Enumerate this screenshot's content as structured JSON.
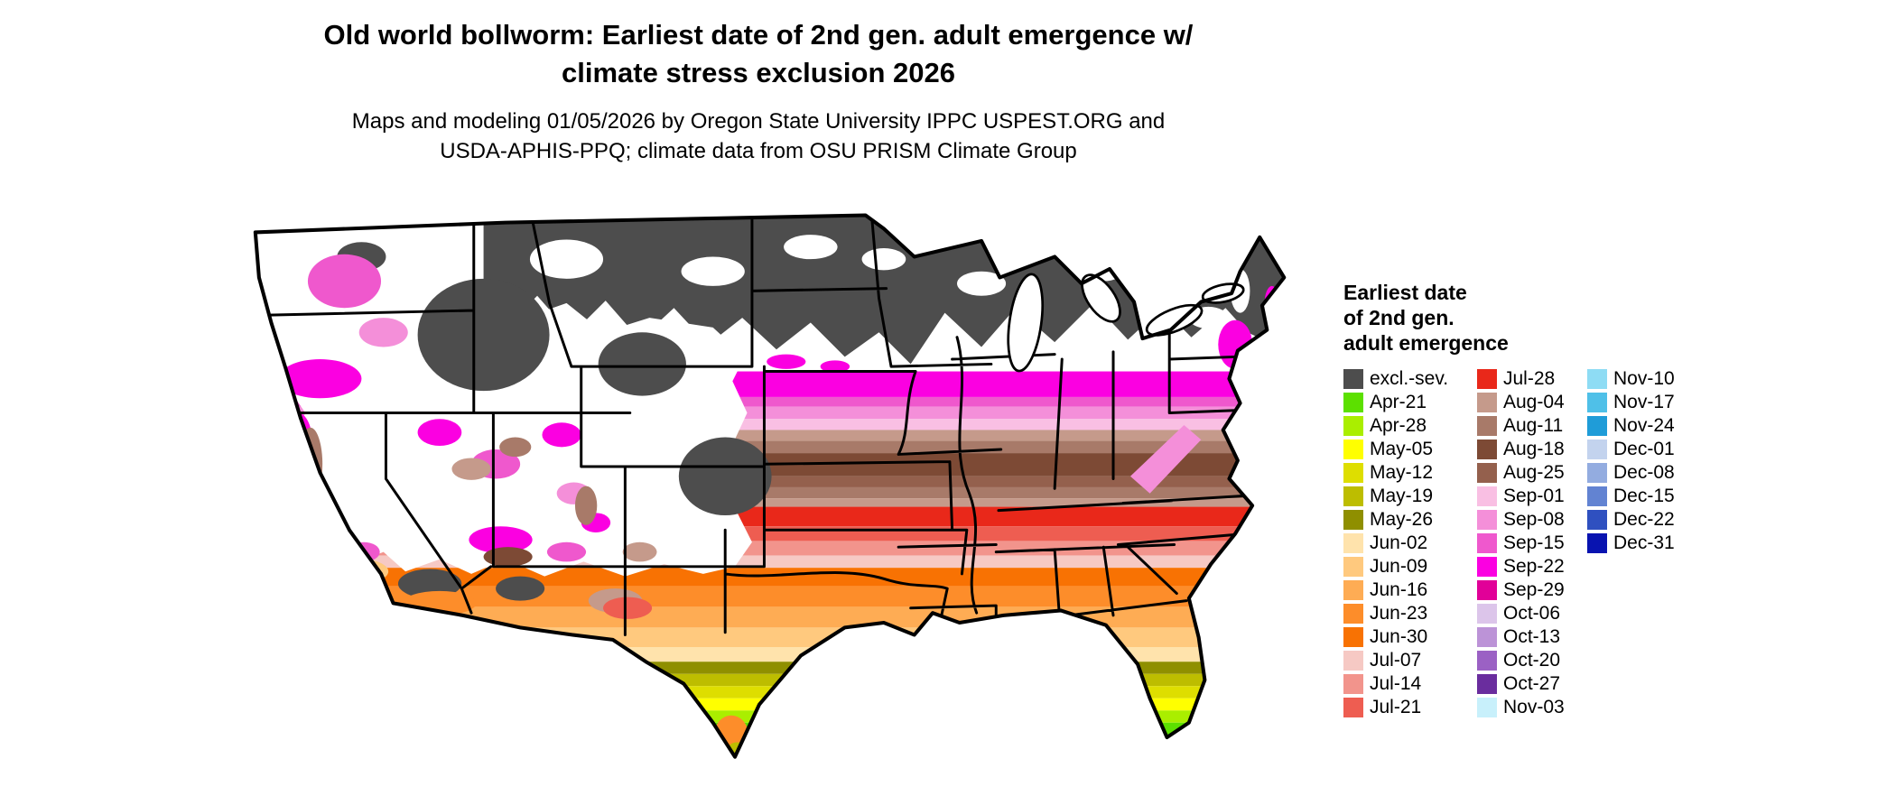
{
  "header": {
    "title_line1": "Old world bollworm: Earliest date of 2nd gen. adult emergence w/",
    "title_line2": "climate stress exclusion 2026",
    "subtitle_line1": "Maps and modeling 01/05/2026 by Oregon State University IPPC USPEST.ORG and",
    "subtitle_line2": "USDA-APHIS-PPQ; climate data from OSU PRISM Climate Group"
  },
  "legend": {
    "title_lines": [
      "Earliest date",
      "of 2nd gen.",
      "adult emergence"
    ],
    "columns": [
      {
        "entries": [
          {
            "label": "excl.-sev.",
            "color": "#4d4d4d"
          },
          {
            "label": "Apr-21",
            "color": "#5ce000"
          },
          {
            "label": "Apr-28",
            "color": "#aaee00"
          },
          {
            "label": "May-05",
            "color": "#ffff00"
          },
          {
            "label": "May-12",
            "color": "#dede00"
          },
          {
            "label": "May-19",
            "color": "#bdbd00"
          },
          {
            "label": "May-26",
            "color": "#8f8f00"
          },
          {
            "label": "Jun-02",
            "color": "#ffe3ac"
          },
          {
            "label": "Jun-09",
            "color": "#ffc97e"
          },
          {
            "label": "Jun-16",
            "color": "#feac54"
          },
          {
            "label": "Jun-23",
            "color": "#fd8d2a"
          },
          {
            "label": "Jun-30",
            "color": "#f87203"
          },
          {
            "label": "Jul-07",
            "color": "#f6c9c4"
          },
          {
            "label": "Jul-14",
            "color": "#f2948c"
          },
          {
            "label": "Jul-21",
            "color": "#ee5d51"
          }
        ]
      },
      {
        "entries": [
          {
            "label": "Jul-28",
            "color": "#e9281a"
          },
          {
            "label": "Aug-04",
            "color": "#c59a8b"
          },
          {
            "label": "Aug-11",
            "color": "#a87a69"
          },
          {
            "label": "Aug-18",
            "color": "#7d4a35"
          },
          {
            "label": "Aug-25",
            "color": "#94604d"
          },
          {
            "label": "Sep-01",
            "color": "#f9bfe3"
          },
          {
            "label": "Sep-08",
            "color": "#f48fd9"
          },
          {
            "label": "Sep-15",
            "color": "#ef58cd"
          },
          {
            "label": "Sep-22",
            "color": "#fb00e1"
          },
          {
            "label": "Sep-29",
            "color": "#e10098"
          },
          {
            "label": "Oct-06",
            "color": "#dcc5ea"
          },
          {
            "label": "Oct-13",
            "color": "#bc93d7"
          },
          {
            "label": "Oct-20",
            "color": "#9b61c4"
          },
          {
            "label": "Oct-27",
            "color": "#6a2d9e"
          },
          {
            "label": "Nov-03",
            "color": "#c8f0fb"
          }
        ]
      },
      {
        "entries": [
          {
            "label": "Nov-10",
            "color": "#8edcf4"
          },
          {
            "label": "Nov-17",
            "color": "#4fc0e8"
          },
          {
            "label": "Nov-24",
            "color": "#1f9cd8"
          },
          {
            "label": "Dec-01",
            "color": "#c3d3ee"
          },
          {
            "label": "Dec-08",
            "color": "#93ace0"
          },
          {
            "label": "Dec-15",
            "color": "#6283d2"
          },
          {
            "label": "Dec-22",
            "color": "#2f50c0"
          },
          {
            "label": "Dec-31",
            "color": "#0813b0"
          }
        ]
      }
    ]
  }
}
